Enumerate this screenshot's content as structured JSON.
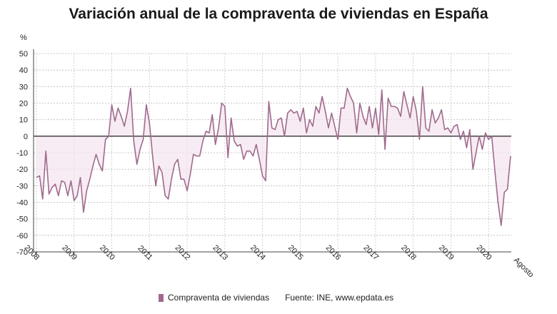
{
  "chart_data": {
    "type": "line",
    "title": "Variación anual de la compraventa de viviendas en España",
    "ylabel": "%",
    "ylim": [
      -70,
      50
    ],
    "yticks": [
      -70,
      -60,
      -50,
      -40,
      -30,
      -20,
      -10,
      0,
      10,
      20,
      30,
      40,
      50
    ],
    "xticks": [
      "2008",
      "2009",
      "2010",
      "2011",
      "2012",
      "2013",
      "2014",
      "2015",
      "2016",
      "2017",
      "2018",
      "2019",
      "2020",
      "Agosto"
    ],
    "grid": true,
    "legend": "bottom",
    "series": [
      {
        "name": "Compraventa de viviendas",
        "color": "#a06a8e",
        "values": [
          -25,
          -24,
          -38,
          -9,
          -35,
          -31,
          -29,
          -36,
          -27,
          -28,
          -36,
          -27,
          -39,
          -36,
          -25,
          -46,
          -33,
          -26,
          -18,
          -11,
          -17,
          -21,
          -2,
          0,
          19,
          9,
          17,
          12,
          6,
          15,
          29,
          -3,
          -17,
          -8,
          -2,
          19,
          8,
          -12,
          -30,
          -18,
          -22,
          -36,
          -38,
          -26,
          -17,
          -14,
          -26,
          -26,
          -33,
          -23,
          -11,
          -12,
          -12,
          -3,
          3,
          2,
          13,
          -5,
          5,
          20,
          18,
          -13,
          11,
          -3,
          -6,
          -5,
          -14,
          -9,
          -9,
          -12,
          -5,
          -14,
          -24,
          -27,
          21,
          5,
          4,
          10,
          11,
          0,
          14,
          16,
          14,
          15,
          9,
          17,
          2,
          10,
          6,
          18,
          14,
          24,
          15,
          5,
          14,
          6,
          -2,
          17,
          17,
          29,
          24,
          20,
          2,
          20,
          12,
          7,
          18,
          5,
          17,
          1,
          28,
          -8,
          23,
          18,
          18,
          17,
          12,
          27,
          19,
          11,
          24,
          15,
          -2,
          30,
          5,
          3,
          16,
          8,
          11,
          16,
          4,
          5,
          2,
          6,
          7,
          -2,
          3,
          -7,
          4,
          -20,
          -10,
          0,
          -8,
          2,
          -2,
          0,
          -21,
          -40,
          -54,
          -34,
          -32,
          -12
        ]
      }
    ],
    "source": "Fuente: INE, www.epdata.es"
  }
}
